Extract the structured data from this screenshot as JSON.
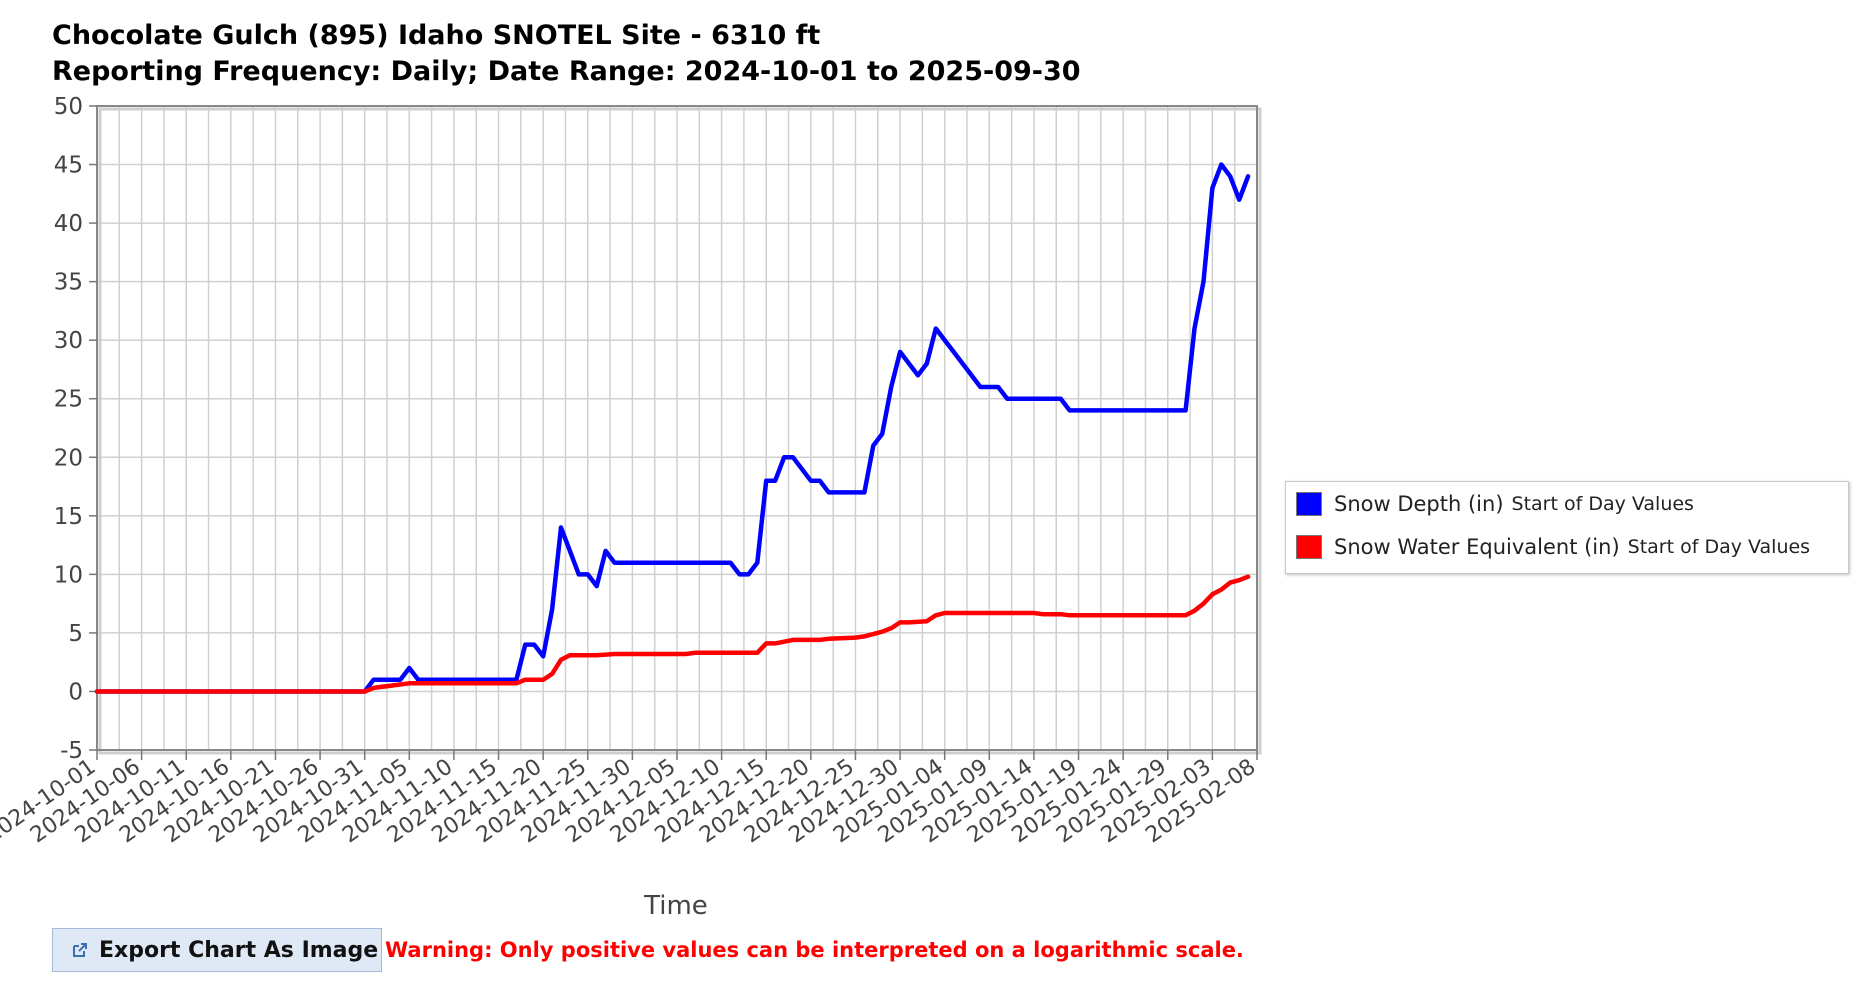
{
  "chart_data": {
    "type": "line",
    "title": "Chocolate Gulch (895) Idaho SNOTEL Site - 6310 ft",
    "subtitle": "Reporting Frequency: Daily; Date Range: 2024-10-01 to 2025-09-30",
    "xlabel": "Time",
    "ylabel": "",
    "ylim": [
      -5,
      50
    ],
    "yticks": [
      -5,
      0,
      5,
      10,
      15,
      20,
      25,
      30,
      35,
      40,
      45,
      50
    ],
    "xlim": [
      "2024-10-01",
      "2025-02-08"
    ],
    "xtick_labels": [
      "2024-10-01",
      "2024-10-06",
      "2024-10-11",
      "2024-10-16",
      "2024-10-21",
      "2024-10-26",
      "2024-10-31",
      "2024-11-05",
      "2024-11-10",
      "2024-11-15",
      "2024-11-20",
      "2024-11-25",
      "2024-11-30",
      "2024-12-05",
      "2024-12-10",
      "2024-12-15",
      "2024-12-20",
      "2024-12-25",
      "2024-12-30",
      "2025-01-04",
      "2025-01-09",
      "2025-01-14",
      "2025-01-19",
      "2025-01-24",
      "2025-01-29",
      "2025-02-03",
      "2025-02-08"
    ],
    "grid": true,
    "legend_position": "right",
    "series": [
      {
        "name": "Snow Depth (in)",
        "name_suffix": "Start of Day Values",
        "color": "#0000ff",
        "points": [
          [
            "2024-10-01",
            0
          ],
          [
            "2024-10-31",
            0
          ],
          [
            "2024-11-01",
            1
          ],
          [
            "2024-11-04",
            1
          ],
          [
            "2024-11-05",
            2
          ],
          [
            "2024-11-06",
            1
          ],
          [
            "2024-11-17",
            1
          ],
          [
            "2024-11-18",
            4
          ],
          [
            "2024-11-19",
            4
          ],
          [
            "2024-11-20",
            3
          ],
          [
            "2024-11-21",
            7
          ],
          [
            "2024-11-22",
            14
          ],
          [
            "2024-11-23",
            12
          ],
          [
            "2024-11-24",
            10
          ],
          [
            "2024-11-25",
            10
          ],
          [
            "2024-11-26",
            9
          ],
          [
            "2024-11-27",
            12
          ],
          [
            "2024-11-28",
            11
          ],
          [
            "2024-12-11",
            11
          ],
          [
            "2024-12-12",
            10
          ],
          [
            "2024-12-13",
            10
          ],
          [
            "2024-12-14",
            11
          ],
          [
            "2024-12-15",
            18
          ],
          [
            "2024-12-16",
            18
          ],
          [
            "2024-12-17",
            20
          ],
          [
            "2024-12-18",
            20
          ],
          [
            "2024-12-20",
            18
          ],
          [
            "2024-12-21",
            18
          ],
          [
            "2024-12-22",
            17
          ],
          [
            "2024-12-26",
            17
          ],
          [
            "2024-12-27",
            21
          ],
          [
            "2024-12-28",
            22
          ],
          [
            "2024-12-29",
            26
          ],
          [
            "2024-12-30",
            29
          ],
          [
            "2025-01-01",
            27
          ],
          [
            "2025-01-02",
            28
          ],
          [
            "2025-01-03",
            31
          ],
          [
            "2025-01-07",
            27
          ],
          [
            "2025-01-08",
            26
          ],
          [
            "2025-01-10",
            26
          ],
          [
            "2025-01-11",
            25
          ],
          [
            "2025-01-17",
            25
          ],
          [
            "2025-01-18",
            24
          ],
          [
            "2025-01-31",
            24
          ],
          [
            "2025-02-01",
            31
          ],
          [
            "2025-02-02",
            35
          ],
          [
            "2025-02-03",
            43
          ],
          [
            "2025-02-04",
            45
          ],
          [
            "2025-02-05",
            44
          ],
          [
            "2025-02-06",
            42
          ],
          [
            "2025-02-07",
            44
          ]
        ]
      },
      {
        "name": "Snow Water Equivalent (in)",
        "name_suffix": "Start of Day Values",
        "color": "#ff0000",
        "points": [
          [
            "2024-10-01",
            0
          ],
          [
            "2024-10-31",
            0
          ],
          [
            "2024-11-01",
            0.3
          ],
          [
            "2024-11-03",
            0.5
          ],
          [
            "2024-11-05",
            0.7
          ],
          [
            "2024-11-17",
            0.7
          ],
          [
            "2024-11-18",
            1
          ],
          [
            "2024-11-20",
            1
          ],
          [
            "2024-11-21",
            1.5
          ],
          [
            "2024-11-22",
            2.7
          ],
          [
            "2024-11-23",
            3.1
          ],
          [
            "2024-11-26",
            3.1
          ],
          [
            "2024-11-28",
            3.2
          ],
          [
            "2024-12-06",
            3.2
          ],
          [
            "2024-12-07",
            3.3
          ],
          [
            "2024-12-14",
            3.3
          ],
          [
            "2024-12-15",
            4.1
          ],
          [
            "2024-12-16",
            4.1
          ],
          [
            "2024-12-18",
            4.4
          ],
          [
            "2024-12-21",
            4.4
          ],
          [
            "2024-12-22",
            4.5
          ],
          [
            "2024-12-25",
            4.6
          ],
          [
            "2024-12-26",
            4.7
          ],
          [
            "2024-12-28",
            5.1
          ],
          [
            "2024-12-29",
            5.4
          ],
          [
            "2024-12-30",
            5.9
          ],
          [
            "2024-12-31",
            5.9
          ],
          [
            "2025-01-02",
            6.0
          ],
          [
            "2025-01-03",
            6.5
          ],
          [
            "2025-01-04",
            6.7
          ],
          [
            "2025-01-14",
            6.7
          ],
          [
            "2025-01-15",
            6.6
          ],
          [
            "2025-01-17",
            6.6
          ],
          [
            "2025-01-18",
            6.5
          ],
          [
            "2025-01-31",
            6.5
          ],
          [
            "2025-02-01",
            6.9
          ],
          [
            "2025-02-02",
            7.5
          ],
          [
            "2025-02-03",
            8.3
          ],
          [
            "2025-02-04",
            8.7
          ],
          [
            "2025-02-05",
            9.3
          ],
          [
            "2025-02-06",
            9.5
          ],
          [
            "2025-02-07",
            9.8
          ]
        ]
      }
    ]
  },
  "export_button": {
    "label": "Export Chart As Image",
    "icon": "external-link-icon"
  },
  "warning": "Warning: Only positive values can be interpreted on a logarithmic scale."
}
